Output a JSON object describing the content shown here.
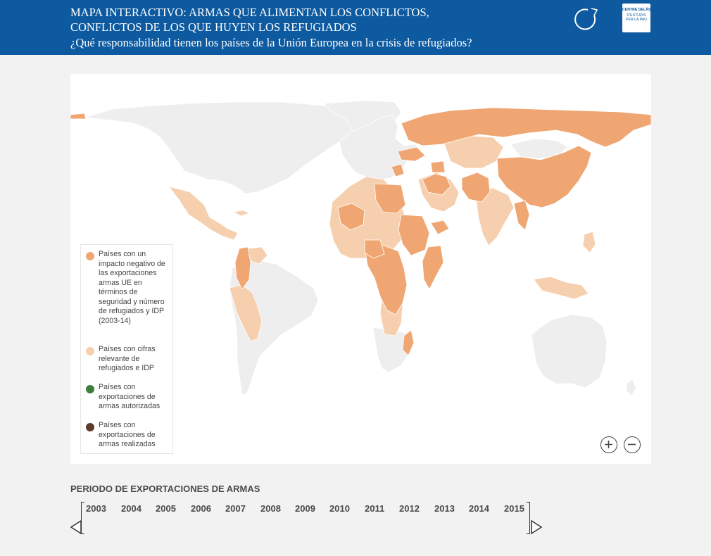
{
  "header": {
    "title_line1": "MAPA INTERACTIVO: ARMAS QUE ALIMENTAN LOS CONFLICTOS,",
    "title_line2": "CONFLICTOS DE LOS QUE HUYEN LOS REFUGIADOS",
    "subtitle": "¿Qué responsabilidad tienen los países de la Unión Europea en la crisis de refugiados?",
    "refresh_icon": "refresh-icon",
    "logo": {
      "line1": "CENTRE DELÀS",
      "line2": "D'ESTUDIS",
      "line3": "PER LA PAU"
    }
  },
  "colors": {
    "header_bg": "#0e5aa0",
    "impact": "#f0a672",
    "refugees": "#f6cfae",
    "authorized": "#3e7e3c",
    "realized": "#5a3a28",
    "land": "#eeeeee"
  },
  "legend": {
    "items": [
      {
        "label": "Países con un impacto negativo de las exportaciones armas UE en términos de seguridad y número de refugiados y IDP (2003-14)",
        "color": "#f0a672"
      },
      {
        "label": "Países con cifras relevante de refugiados e IDP",
        "color": "#f6cfae"
      },
      {
        "label": "Países con exportaciones de armas autorizadas",
        "color": "#3e7e3c"
      },
      {
        "label": "Países con exportaciones de armas realizadas",
        "color": "#5a3a28"
      }
    ]
  },
  "zoom": {
    "in_icon": "zoom-in-icon",
    "out_icon": "zoom-out-icon"
  },
  "timeline": {
    "title": "PERIODO DE EXPORTACIONES DE ARMAS",
    "years": [
      "2003",
      "2004",
      "2005",
      "2006",
      "2007",
      "2008",
      "2009",
      "2010",
      "2011",
      "2012",
      "2013",
      "2014",
      "2015"
    ]
  }
}
